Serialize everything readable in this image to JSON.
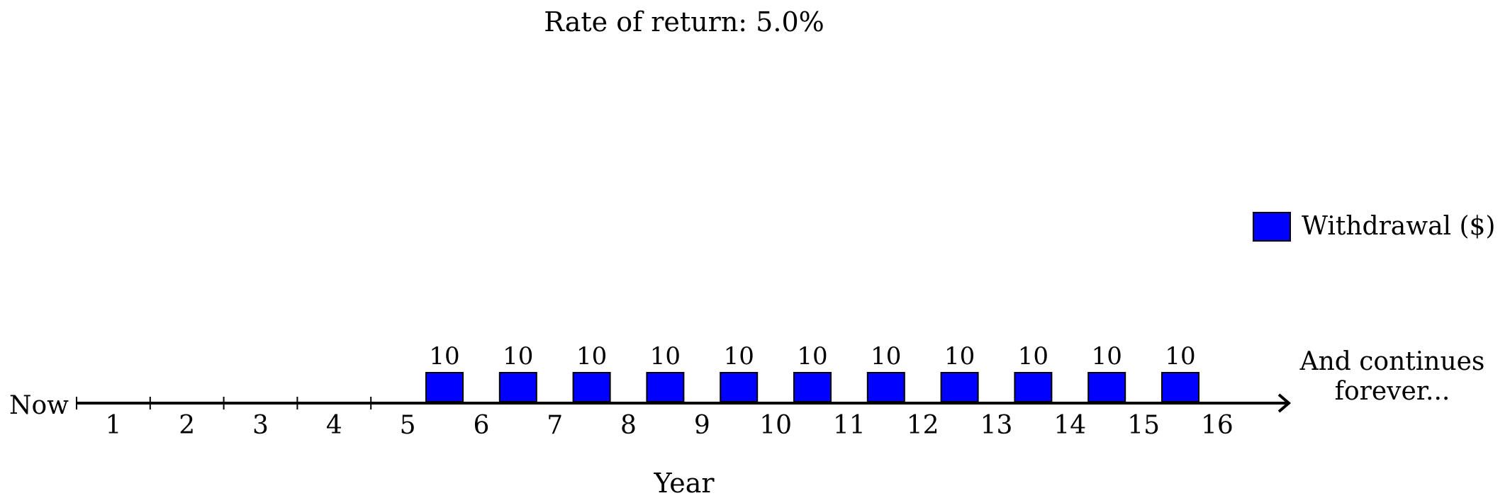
{
  "chart_data": {
    "type": "bar",
    "title": "Rate of return: 5.0%",
    "xlabel": "Year",
    "start_label": "Now",
    "end_label_lines": [
      "And continues",
      "forever..."
    ],
    "year_labels": [
      "1",
      "2",
      "3",
      "4",
      "5",
      "6",
      "7",
      "8",
      "9",
      "10",
      "11",
      "12",
      "13",
      "14",
      "15",
      "16"
    ],
    "series": [
      {
        "name": "Withdrawal ($)",
        "color": "#0000ff",
        "years": [
          6,
          7,
          8,
          9,
          10,
          11,
          12,
          13,
          14,
          15,
          16
        ],
        "values": [
          10,
          10,
          10,
          10,
          10,
          10,
          10,
          10,
          10,
          10,
          10
        ]
      }
    ],
    "legend_position": "right",
    "grid": false
  }
}
